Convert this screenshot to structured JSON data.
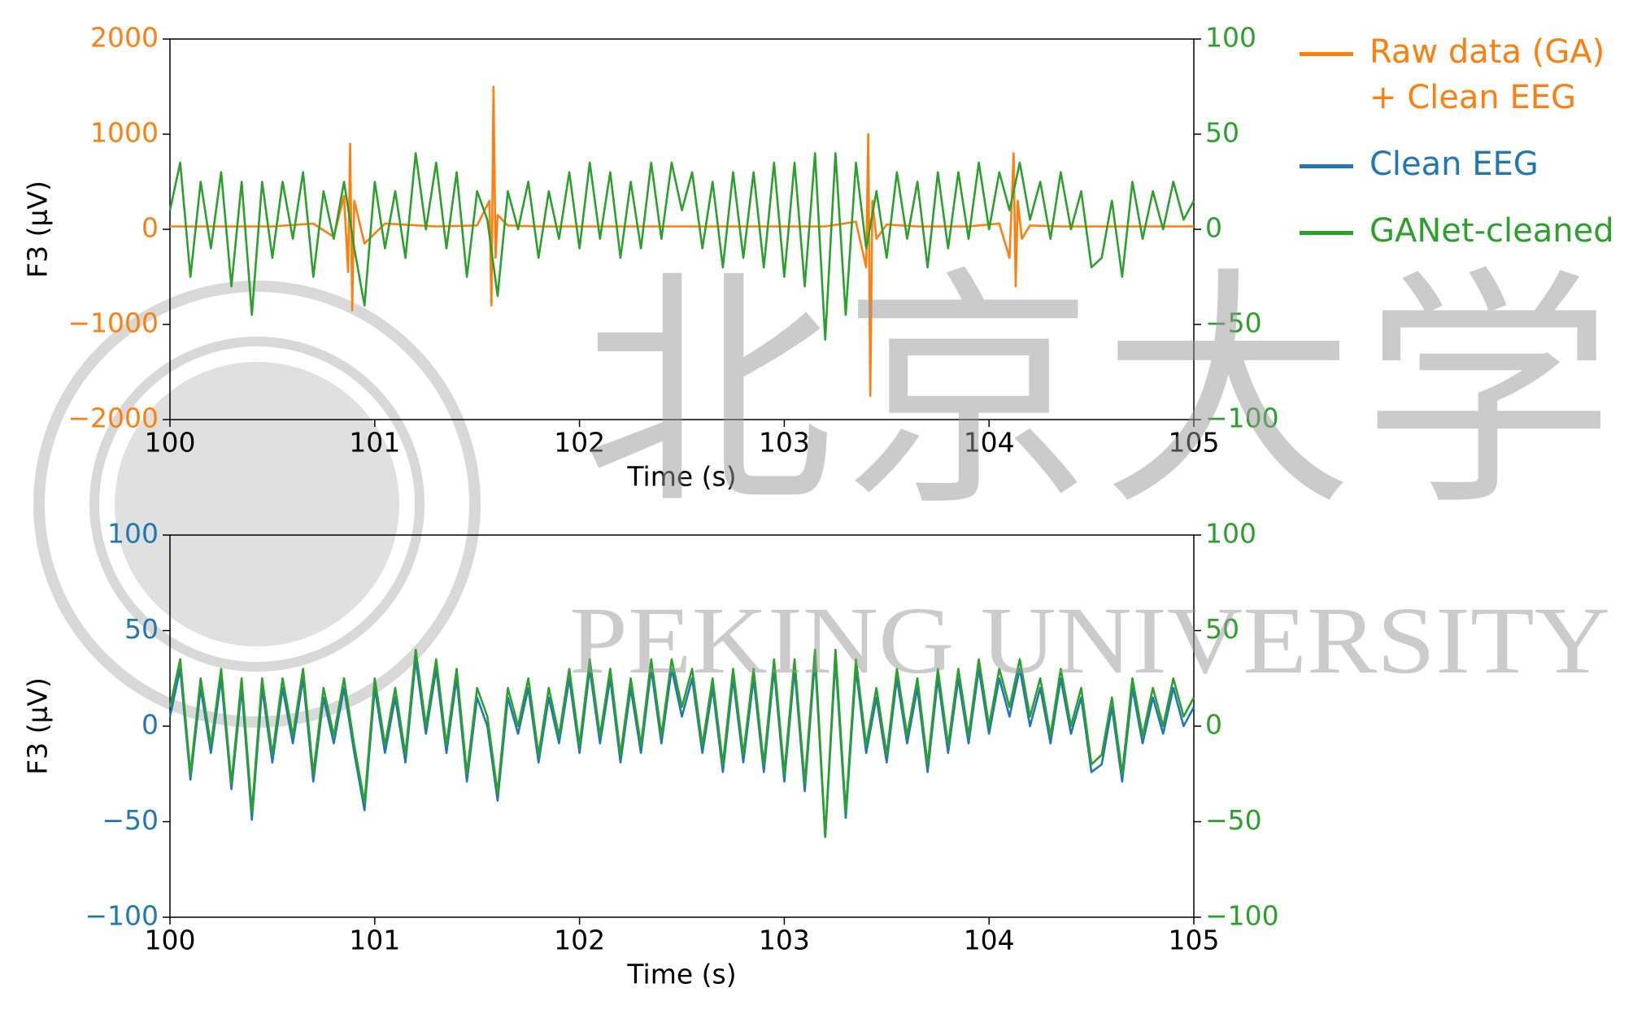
{
  "chart_data": [
    {
      "type": "line",
      "xlabel": "Time (s)",
      "ylabel": "F3 (µV)",
      "xlim": [
        100,
        105
      ],
      "xticks": [
        100,
        101,
        102,
        103,
        104,
        105
      ],
      "ylim": [
        -2000,
        2000
      ],
      "yticks": [
        {
          "value": -2000,
          "label": "−2000"
        },
        {
          "value": -1000,
          "label": "−1000"
        },
        0,
        1000,
        2000
      ],
      "y2lim": [
        -100,
        100
      ],
      "y2ticks": [
        {
          "value": -100,
          "label": "−100"
        },
        {
          "value": -50,
          "label": "−50"
        },
        0,
        50,
        100
      ],
      "x": [
        100,
        100.05,
        100.1,
        100.15,
        100.2,
        100.25,
        100.3,
        100.35,
        100.4,
        100.45,
        100.5,
        100.55,
        100.6,
        100.65,
        100.7,
        100.75,
        100.8,
        100.85,
        100.9,
        100.95,
        101,
        101.05,
        101.1,
        101.15,
        101.2,
        101.25,
        101.3,
        101.35,
        101.4,
        101.45,
        101.5,
        101.55,
        101.6,
        101.65,
        101.7,
        101.75,
        101.8,
        101.85,
        101.9,
        101.95,
        102,
        102.05,
        102.1,
        102.15,
        102.2,
        102.25,
        102.3,
        102.35,
        102.4,
        102.45,
        102.5,
        102.55,
        102.6,
        102.65,
        102.7,
        102.75,
        102.8,
        102.85,
        102.9,
        102.95,
        103,
        103.05,
        103.1,
        103.15,
        103.2,
        103.25,
        103.3,
        103.35,
        103.4,
        103.45,
        103.5,
        103.55,
        103.6,
        103.65,
        103.7,
        103.75,
        103.8,
        103.85,
        103.9,
        103.95,
        104,
        104.05,
        104.1,
        104.15,
        104.2,
        104.25,
        104.3,
        104.35,
        104.4,
        104.45,
        104.5,
        104.55,
        104.6,
        104.65,
        104.7,
        104.75,
        104.8,
        104.85,
        104.9,
        104.95,
        105
      ],
      "series": [
        {
          "name": "Raw data (GA) + Clean EEG",
          "color": "#ff7f0e",
          "x": [
            100,
            100.5,
            100.7,
            100.8,
            100.85,
            100.87,
            100.88,
            100.89,
            100.9,
            100.95,
            101.05,
            101.3,
            101.5,
            101.56,
            101.57,
            101.58,
            101.59,
            101.6,
            101.65,
            101.8,
            102.5,
            103.2,
            103.35,
            103.4,
            103.41,
            103.42,
            103.43,
            103.45,
            103.5,
            103.65,
            103.9,
            104.05,
            104.1,
            104.12,
            104.13,
            104.14,
            104.16,
            104.2,
            104.35,
            104.6,
            105
          ],
          "values": [
            30,
            30,
            60,
            -80,
            350,
            -450,
            900,
            -850,
            300,
            -150,
            60,
            30,
            40,
            300,
            -800,
            1500,
            -300,
            150,
            40,
            30,
            30,
            30,
            80,
            -400,
            1000,
            -1750,
            300,
            -100,
            50,
            30,
            30,
            60,
            -300,
            800,
            -600,
            300,
            -100,
            40,
            30,
            30,
            30
          ]
        },
        {
          "name": "GANet-cleaned",
          "color": "#2ca02c",
          "axis": "y2",
          "values": [
            10,
            35,
            -25,
            25,
            -10,
            30,
            -30,
            25,
            -45,
            25,
            -15,
            25,
            -5,
            30,
            -25,
            20,
            -5,
            25,
            -10,
            -40,
            25,
            -10,
            20,
            -15,
            40,
            0,
            35,
            -10,
            30,
            -25,
            20,
            5,
            -35,
            20,
            0,
            25,
            -15,
            20,
            -5,
            30,
            -10,
            35,
            -5,
            30,
            -15,
            25,
            -10,
            35,
            -5,
            35,
            10,
            30,
            -10,
            25,
            -20,
            30,
            -15,
            30,
            -20,
            35,
            -25,
            35,
            -30,
            40,
            -58,
            40,
            -45,
            35,
            -10,
            20,
            -15,
            30,
            -5,
            25,
            -20,
            30,
            -10,
            30,
            -5,
            35,
            0,
            30,
            10,
            35,
            5,
            25,
            -5,
            30,
            0,
            20,
            -20,
            -15,
            15,
            -25,
            25,
            -5,
            20,
            0,
            25,
            5,
            15
          ]
        }
      ]
    },
    {
      "type": "line",
      "xlabel": "Time (s)",
      "ylabel": "F3 (µV)",
      "xlim": [
        100,
        105
      ],
      "xticks": [
        100,
        101,
        102,
        103,
        104,
        105
      ],
      "ylim": [
        -100,
        100
      ],
      "yticks": [
        {
          "value": -100,
          "label": "−100"
        },
        {
          "value": -50,
          "label": "−50"
        },
        0,
        50,
        100
      ],
      "y2lim": [
        -100,
        100
      ],
      "y2ticks": [
        {
          "value": -100,
          "label": "−100"
        },
        {
          "value": -50,
          "label": "−50"
        },
        0,
        50,
        100
      ],
      "x": [
        100,
        100.05,
        100.1,
        100.15,
        100.2,
        100.25,
        100.3,
        100.35,
        100.4,
        100.45,
        100.5,
        100.55,
        100.6,
        100.65,
        100.7,
        100.75,
        100.8,
        100.85,
        100.9,
        100.95,
        101,
        101.05,
        101.1,
        101.15,
        101.2,
        101.25,
        101.3,
        101.35,
        101.4,
        101.45,
        101.5,
        101.55,
        101.6,
        101.65,
        101.7,
        101.75,
        101.8,
        101.85,
        101.9,
        101.95,
        102,
        102.05,
        102.1,
        102.15,
        102.2,
        102.25,
        102.3,
        102.35,
        102.4,
        102.45,
        102.5,
        102.55,
        102.6,
        102.65,
        102.7,
        102.75,
        102.8,
        102.85,
        102.9,
        102.95,
        103,
        103.05,
        103.1,
        103.15,
        103.2,
        103.25,
        103.3,
        103.35,
        103.4,
        103.45,
        103.5,
        103.55,
        103.6,
        103.65,
        103.7,
        103.75,
        103.8,
        103.85,
        103.9,
        103.95,
        104,
        104.05,
        104.1,
        104.15,
        104.2,
        104.25,
        104.3,
        104.35,
        104.4,
        104.45,
        104.5,
        104.55,
        104.6,
        104.65,
        104.7,
        104.75,
        104.8,
        104.85,
        104.9,
        104.95,
        105
      ],
      "series": [
        {
          "name": "Clean EEG",
          "color": "#1f77b4",
          "values": [
            5,
            30,
            -28,
            20,
            -14,
            25,
            -33,
            20,
            -49,
            20,
            -19,
            20,
            -9,
            25,
            -29,
            15,
            -9,
            20,
            -14,
            -44,
            20,
            -14,
            15,
            -19,
            35,
            -4,
            30,
            -14,
            25,
            -29,
            15,
            0,
            -39,
            15,
            -4,
            20,
            -19,
            15,
            -9,
            25,
            -14,
            30,
            -9,
            25,
            -19,
            20,
            -14,
            30,
            -9,
            30,
            5,
            25,
            -14,
            20,
            -24,
            25,
            -19,
            25,
            -24,
            30,
            -29,
            30,
            -34,
            35,
            -58,
            35,
            -48,
            30,
            -14,
            15,
            -19,
            25,
            -9,
            20,
            -24,
            25,
            -14,
            25,
            -9,
            30,
            -4,
            25,
            5,
            30,
            0,
            20,
            -9,
            25,
            -4,
            15,
            -24,
            -20,
            10,
            -29,
            20,
            -9,
            15,
            -4,
            20,
            0,
            10
          ]
        },
        {
          "name": "GANet-cleaned",
          "color": "#2ca02c",
          "axis": "y2",
          "values": [
            10,
            35,
            -25,
            25,
            -10,
            30,
            -30,
            25,
            -45,
            25,
            -15,
            25,
            -5,
            30,
            -25,
            20,
            -5,
            25,
            -10,
            -40,
            25,
            -10,
            20,
            -15,
            40,
            0,
            35,
            -10,
            30,
            -25,
            20,
            5,
            -35,
            20,
            0,
            25,
            -15,
            20,
            -5,
            30,
            -10,
            35,
            -5,
            30,
            -15,
            25,
            -10,
            35,
            -5,
            35,
            10,
            30,
            -10,
            25,
            -20,
            30,
            -15,
            30,
            -20,
            35,
            -25,
            35,
            -30,
            40,
            -58,
            40,
            -45,
            35,
            -10,
            20,
            -15,
            30,
            -5,
            25,
            -20,
            30,
            -10,
            30,
            -5,
            35,
            0,
            30,
            10,
            35,
            5,
            25,
            -5,
            30,
            0,
            20,
            -20,
            -15,
            15,
            -25,
            25,
            -5,
            20,
            0,
            25,
            5,
            15
          ]
        }
      ]
    }
  ],
  "watermark": {
    "chinese": "北京大学",
    "english": "PEKING UNIVERSITY"
  }
}
